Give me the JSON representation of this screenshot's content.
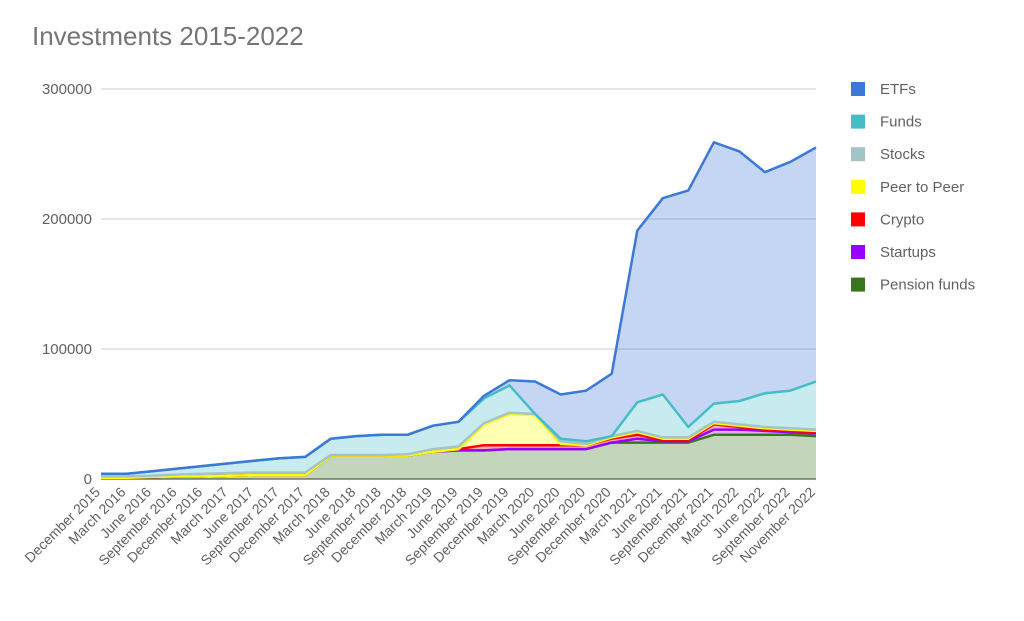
{
  "chart_data": {
    "type": "stacked_area",
    "title": "Investments 2015-2022",
    "categories": [
      "December 2015",
      "March 2016",
      "June 2016",
      "September 2016",
      "December 2016",
      "March 2017",
      "June 2017",
      "September 2017",
      "December 2017",
      "March 2018",
      "June 2018",
      "September 2018",
      "December 2018",
      "March 2019",
      "June 2019",
      "September 2019",
      "December 2019",
      "March 2020",
      "June 2020",
      "September 2020",
      "December 2020",
      "March 2021",
      "June 2021",
      "September 2021",
      "December 2021",
      "March 2022",
      "June 2022",
      "September 2022",
      "November 2022"
    ],
    "series": [
      {
        "name": "ETFs",
        "color": "#3c78d8",
        "values": [
          0,
          0,
          0,
          0,
          0,
          0,
          0,
          0,
          0,
          0,
          0,
          0,
          0,
          0,
          0,
          2000,
          4000,
          25000,
          34000,
          39000,
          48000,
          132000,
          151000,
          182000,
          201000,
          192000,
          170000,
          176000,
          180000
        ]
      },
      {
        "name": "Funds",
        "color": "#46bdc6",
        "values": [
          2000,
          2000,
          3500,
          4500,
          6000,
          7500,
          9000,
          11000,
          12000,
          12500,
          14500,
          15500,
          15000,
          18000,
          19000,
          19000,
          21000,
          0,
          2000,
          2000,
          0,
          22000,
          33000,
          8000,
          14000,
          18000,
          26000,
          29000,
          37000
        ]
      },
      {
        "name": "Stocks",
        "color": "#a2c4c9",
        "values": [
          1000,
          1000,
          1000,
          1500,
          2000,
          2000,
          2000,
          2000,
          2000,
          500,
          500,
          500,
          1000,
          2000,
          2000,
          1000,
          1000,
          1000,
          2000,
          1000,
          1000,
          1000,
          1000,
          1000,
          1000,
          1000,
          1000,
          1000,
          1000
        ]
      },
      {
        "name": "Peer to Peer",
        "color": "#ffff00",
        "values": [
          0,
          0,
          0,
          0,
          0,
          0,
          0,
          0,
          0,
          0,
          0,
          0,
          0,
          0,
          0,
          16000,
          24000,
          23000,
          1000,
          0,
          1000,
          2000,
          1000,
          1000,
          1000,
          1000,
          1000,
          1000,
          1000
        ]
      },
      {
        "name": "Crypto",
        "color": "#ff0000",
        "values": [
          0,
          0,
          0,
          0,
          0,
          0,
          0,
          0,
          0,
          0,
          0,
          0,
          0,
          0,
          1000,
          4000,
          3000,
          3000,
          3000,
          3000,
          3000,
          3000,
          1000,
          1000,
          4000,
          2000,
          1000,
          1000,
          1000
        ]
      },
      {
        "name": "Startups",
        "color": "#9900ff",
        "values": [
          0,
          0,
          0,
          0,
          0,
          0,
          0,
          0,
          0,
          0,
          0,
          0,
          0,
          0,
          0,
          0,
          0,
          0,
          0,
          0,
          0,
          3000,
          1000,
          1000,
          4000,
          4000,
          3000,
          2000,
          2000
        ]
      },
      {
        "name": "Pension funds",
        "color": "#38761d",
        "values": [
          1000,
          1000,
          1500,
          2000,
          2000,
          2500,
          3000,
          3000,
          3000,
          18000,
          18000,
          18000,
          18000,
          21000,
          22000,
          22000,
          23000,
          23000,
          23000,
          23000,
          28000,
          28000,
          28000,
          28000,
          34000,
          34000,
          34000,
          34000,
          33000
        ]
      }
    ],
    "ylim": [
      0,
      300000
    ],
    "yticks": [
      0,
      100000,
      200000,
      300000
    ],
    "grid": true,
    "legend": "right"
  }
}
